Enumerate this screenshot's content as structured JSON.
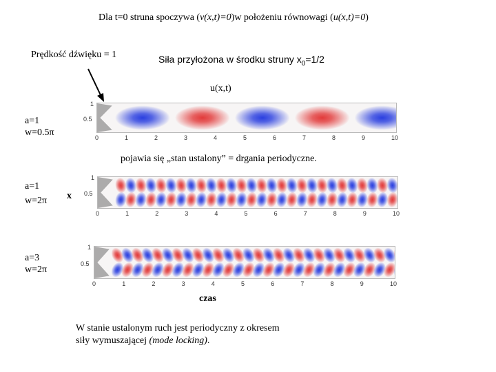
{
  "header": {
    "title_prefix": "Dla t=0 struna spoczywa (",
    "title_v": "v(x,t)=0",
    "title_mid": ")w położeniu równowagi (",
    "title_u": "u(x,t)=0",
    "title_suffix": ")"
  },
  "labels": {
    "sound_speed": "Prędkość dźwięku = 1",
    "force_main": "Siła przyłożona w środku struny x",
    "force_sub": "0",
    "force_tail": "=1/2",
    "u_label": "u(x,t)",
    "steady_state": "pojawia się „stan ustalony” = drgania periodyczne.",
    "x_axis_label": "x",
    "time_label": "czas",
    "conclusion_line1": "W stanie ustalonym ruch jest periodyczny z okresem",
    "conclusion_line2_prefix": "siły wymuszającej ",
    "conclusion_line2_italic": "(mode locking)",
    "conclusion_line2_suffix": "."
  },
  "panels": [
    {
      "param_a": "a=1",
      "param_w": "w=0.5π",
      "a": 1,
      "omega_over_pi": 0.5
    },
    {
      "param_a": "a=1",
      "param_w": "w=2π",
      "a": 1,
      "omega_over_pi": 2
    },
    {
      "param_a": "a=3",
      "param_w": "w=2π",
      "a": 3,
      "omega_over_pi": 2
    }
  ],
  "axis": {
    "x_ticks": [
      "0",
      "1",
      "2",
      "3",
      "4",
      "5",
      "6",
      "7",
      "8",
      "9",
      "10"
    ],
    "y_ticks": [
      "1",
      "0.5"
    ]
  },
  "colors": {
    "positive": "#e23a3a",
    "negative": "#2a3fe0",
    "inactive": "#8c8c8c",
    "arrow": "#000000"
  }
}
